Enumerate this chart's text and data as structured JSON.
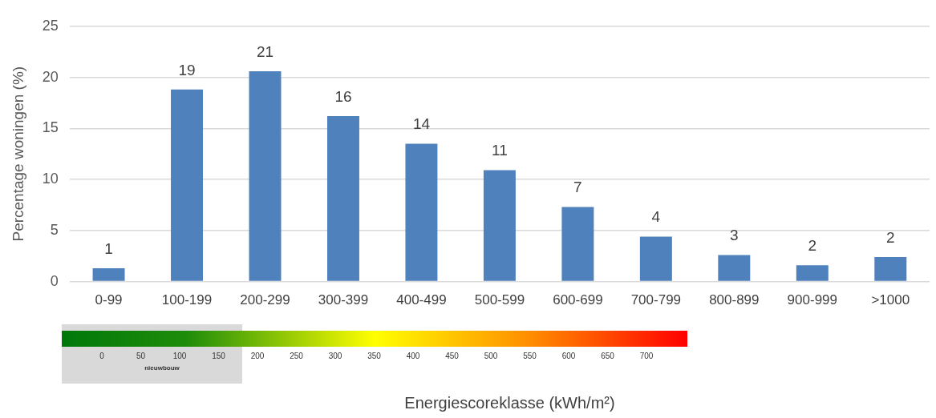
{
  "chart_data": {
    "type": "bar",
    "ylabel": "Percentage woningen (%)",
    "categories": [
      "0-99",
      "100-199",
      "200-299",
      "300-399",
      "400-499",
      "500-599",
      "600-699",
      "700-799",
      "800-899",
      "900-999",
      ">1000"
    ],
    "values": [
      1.3,
      18.8,
      20.6,
      16.2,
      13.5,
      10.9,
      7.3,
      4.4,
      2.6,
      1.6,
      2.4
    ],
    "value_labels": [
      "1",
      "19",
      "21",
      "16",
      "14",
      "11",
      "7",
      "4",
      "3",
      "2",
      "2"
    ],
    "color": "#4f81bd",
    "ylim": [
      0,
      25
    ],
    "yticks": [
      0,
      5,
      10,
      15,
      20,
      25
    ],
    "grid": "y",
    "annotations": [
      "nieuwbouw",
      "0",
      "50",
      "100",
      "150",
      "200",
      "250",
      "300",
      "350",
      "400",
      "450",
      "500",
      "550",
      "600",
      "650",
      "700",
      "Energiescoreklasse (kWh/m²)"
    ]
  }
}
